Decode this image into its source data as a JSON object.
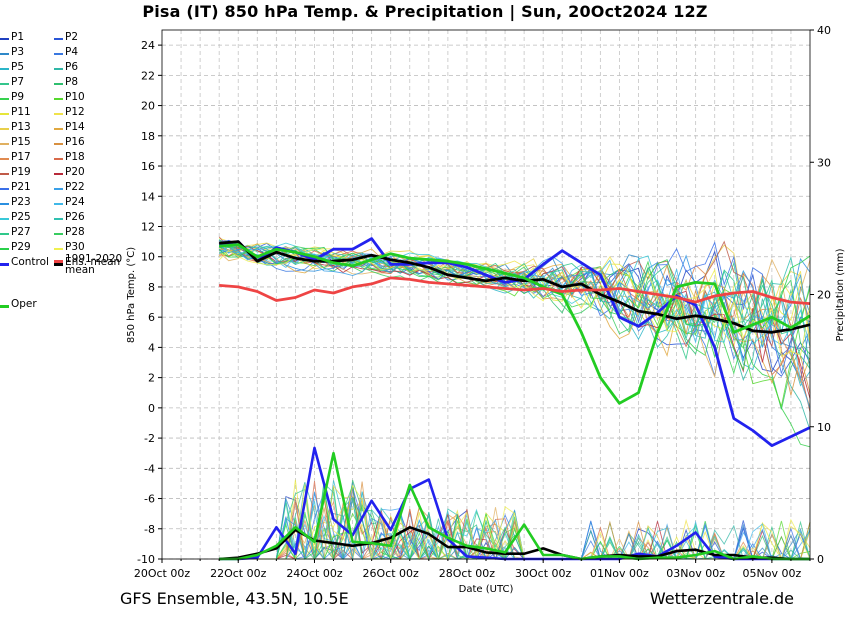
{
  "header": {
    "title": "Pisa  (IT)  850 hPa Temp. & Precipitation | Sun, 20Oct2024 12Z"
  },
  "footer": {
    "left": "GFS Ensemble, 43.5N, 10.5E",
    "right": "Wetterzentrale.de"
  },
  "legend": {
    "items": [
      {
        "label": "P1",
        "color": "#1f3fbf"
      },
      {
        "label": "P2",
        "color": "#2a56d6"
      },
      {
        "label": "P3",
        "color": "#2e88c8"
      },
      {
        "label": "P4",
        "color": "#3a78e0"
      },
      {
        "label": "P5",
        "color": "#2bb5c8"
      },
      {
        "label": "P6",
        "color": "#30b7a7"
      },
      {
        "label": "P7",
        "color": "#33c58c"
      },
      {
        "label": "P8",
        "color": "#2fbf6f"
      },
      {
        "label": "P9",
        "color": "#36d14e"
      },
      {
        "label": "P10",
        "color": "#56d82e"
      },
      {
        "label": "P11",
        "color": "#e6e63a"
      },
      {
        "label": "P12",
        "color": "#f0e24a"
      },
      {
        "label": "P13",
        "color": "#e8cf4a"
      },
      {
        "label": "P14",
        "color": "#e0a840"
      },
      {
        "label": "P15",
        "color": "#e0b060"
      },
      {
        "label": "P16",
        "color": "#d89040"
      },
      {
        "label": "P17",
        "color": "#e08a50"
      },
      {
        "label": "P18",
        "color": "#d86a4a"
      },
      {
        "label": "P19",
        "color": "#c05a48"
      },
      {
        "label": "P20",
        "color": "#b82a3a"
      },
      {
        "label": "P21",
        "color": "#3a6fe8"
      },
      {
        "label": "P22",
        "color": "#3aa0e8"
      },
      {
        "label": "P23",
        "color": "#2a8fe0"
      },
      {
        "label": "P24",
        "color": "#40b8e8"
      },
      {
        "label": "P25",
        "color": "#38c8d8"
      },
      {
        "label": "P26",
        "color": "#30c0b0"
      },
      {
        "label": "P27",
        "color": "#2fc88a"
      },
      {
        "label": "P28",
        "color": "#38cc60"
      },
      {
        "label": "P29",
        "color": "#2ad04a"
      },
      {
        "label": "P30",
        "color": "#f0f050"
      },
      {
        "label": "Control",
        "color": "#2222ee"
      },
      {
        "label": "Ens. mean",
        "color": "#000000"
      },
      {
        "label": "Oper",
        "color": "#22cc22"
      },
      {
        "label": "1991-2020\nmean",
        "color": "#ee4444"
      }
    ]
  },
  "chart_data": {
    "type": "line",
    "title": "Pisa  (IT)  850 hPa Temp. & Precipitation | Sun, 20Oct2024 12Z",
    "xlabel": "Date (UTC)",
    "ylabel": "850 hPa Temp. (°C)",
    "ylabel_right": "Precipitation (mm)",
    "x_ticks": [
      "20Oct 00z",
      "22Oct 00z",
      "24Oct 00z",
      "26Oct 00z",
      "28Oct 00z",
      "30Oct 00z",
      "01Nov 00z",
      "03Nov 00z",
      "05Nov 00z"
    ],
    "x_range_days": [
      0,
      17
    ],
    "step_hours": 6,
    "ylim": [
      -10,
      25
    ],
    "y_ticks": [
      -10,
      -8,
      -6,
      -4,
      -2,
      0,
      2,
      4,
      6,
      8,
      10,
      12,
      14,
      16,
      18,
      20,
      22,
      24
    ],
    "y2lim": [
      0,
      40
    ],
    "y2_ticks": [
      0,
      10,
      20,
      30,
      40
    ],
    "grid": true,
    "series": [
      {
        "name": "Control",
        "color": "#2222ee",
        "x_days": [
          1.5,
          2.0,
          2.5,
          3.0,
          3.5,
          4.0,
          4.5,
          5.0,
          5.5,
          6.0,
          6.5,
          7.0,
          7.5,
          8.0,
          8.5,
          9.0,
          9.5,
          10.0,
          10.5,
          11.0,
          11.5,
          12.0,
          12.5,
          13.0,
          13.5,
          14.0,
          14.5,
          15.0,
          15.5,
          16.0,
          16.5,
          17.0
        ],
        "temp": [
          10.8,
          11.0,
          9.7,
          10.6,
          10.3,
          9.8,
          10.5,
          10.5,
          11.2,
          9.5,
          9.5,
          9.6,
          9.6,
          9.3,
          8.8,
          8.3,
          8.5,
          9.5,
          10.4,
          9.6,
          8.8,
          6.0,
          5.4,
          6.3,
          7.4,
          6.8,
          4.0,
          -0.7,
          -1.5,
          -2.5,
          -1.9,
          -1.3
        ]
      },
      {
        "name": "Ens. mean",
        "color": "#000000",
        "x_days": [
          1.5,
          2.0,
          2.5,
          3.0,
          3.5,
          4.0,
          4.5,
          5.0,
          5.5,
          6.0,
          6.5,
          7.0,
          7.5,
          8.0,
          8.5,
          9.0,
          9.5,
          10.0,
          10.5,
          11.0,
          11.5,
          12.0,
          12.5,
          13.0,
          13.5,
          14.0,
          14.5,
          15.0,
          15.5,
          16.0,
          16.5,
          17.0
        ],
        "temp": [
          10.9,
          11.0,
          9.7,
          10.3,
          9.9,
          9.7,
          9.7,
          9.8,
          10.1,
          9.8,
          9.6,
          9.3,
          8.8,
          8.6,
          8.4,
          8.6,
          8.4,
          8.5,
          8.0,
          8.2,
          7.5,
          7.0,
          6.4,
          6.2,
          5.9,
          6.1,
          5.9,
          5.6,
          5.1,
          5.0,
          5.2,
          5.5
        ]
      },
      {
        "name": "Oper",
        "color": "#22cc22",
        "x_days": [
          1.5,
          2.0,
          2.5,
          3.0,
          3.5,
          4.0,
          4.5,
          5.0,
          5.5,
          6.0,
          6.5,
          7.0,
          7.5,
          8.0,
          8.5,
          9.0,
          9.5,
          10.0,
          10.5,
          11.0,
          11.5,
          12.0,
          12.5,
          13.0,
          13.5,
          14.0,
          14.5,
          15.0,
          15.5,
          16.0,
          16.5,
          17.0
        ],
        "temp": [
          10.7,
          10.8,
          10.0,
          10.5,
          10.3,
          10.0,
          9.6,
          9.4,
          9.8,
          10.2,
          9.9,
          9.8,
          9.7,
          9.5,
          9.2,
          8.9,
          8.6,
          8.0,
          7.5,
          5.0,
          2.0,
          0.3,
          1.0,
          5.0,
          8.0,
          8.3,
          8.2,
          5.0,
          5.5,
          6.0,
          5.3,
          6.1
        ]
      },
      {
        "name": "1991-2020 mean",
        "color": "#ee4444",
        "x_days": [
          1.5,
          2.0,
          2.5,
          3.0,
          3.5,
          4.0,
          4.5,
          5.0,
          5.5,
          6.0,
          6.5,
          7.0,
          7.5,
          8.0,
          8.5,
          9.0,
          9.5,
          10.0,
          10.5,
          11.0,
          11.5,
          12.0,
          12.5,
          13.0,
          13.5,
          14.0,
          14.5,
          15.0,
          15.5,
          16.0,
          16.5,
          17.0
        ],
        "temp": [
          8.1,
          8.0,
          7.7,
          7.1,
          7.3,
          7.8,
          7.6,
          8.0,
          8.2,
          8.6,
          8.5,
          8.3,
          8.2,
          8.1,
          8.0,
          7.9,
          7.8,
          7.9,
          7.7,
          7.8,
          7.8,
          7.9,
          7.7,
          7.5,
          7.3,
          7.0,
          7.4,
          7.6,
          7.7,
          7.3,
          7.0,
          6.9
        ]
      }
    ],
    "precipitation": [
      {
        "name": "Control",
        "color": "#2222ee",
        "x_days": [
          1.5,
          2.0,
          2.5,
          3.0,
          3.5,
          4.0,
          4.5,
          5.0,
          5.5,
          6.0,
          6.5,
          7.0,
          7.5,
          8.0,
          8.5,
          9.0,
          9.5,
          10.0,
          10.5,
          11.0,
          11.5,
          12.0,
          12.5,
          13.0,
          13.5,
          14.0,
          14.5,
          15.0,
          15.5,
          16.0,
          16.5,
          17.0
        ],
        "mm": [
          0,
          0,
          0.1,
          2.4,
          0.4,
          8.4,
          3.0,
          1.8,
          4.4,
          2.2,
          5.3,
          6.0,
          1.5,
          0.2,
          0.1,
          0,
          0,
          0,
          0,
          0,
          0,
          0,
          0.4,
          0.2,
          1.0,
          2.0,
          0.2,
          0,
          0,
          0,
          0,
          0
        ]
      },
      {
        "name": "Ens. mean",
        "color": "#000000",
        "x_days": [
          1.5,
          2.0,
          2.5,
          3.0,
          3.5,
          4.0,
          4.5,
          5.0,
          5.5,
          6.0,
          6.5,
          7.0,
          7.5,
          8.0,
          8.5,
          9.0,
          9.5,
          10.0,
          10.5,
          11.0,
          11.5,
          12.0,
          12.5,
          13.0,
          13.5,
          14.0,
          14.5,
          15.0,
          15.5,
          16.0,
          16.5,
          17.0
        ],
        "mm": [
          0,
          0.1,
          0.4,
          0.8,
          2.2,
          1.4,
          1.2,
          1.0,
          1.2,
          1.6,
          2.4,
          1.9,
          0.9,
          0.9,
          0.5,
          0.4,
          0.4,
          0.8,
          0.3,
          0,
          0.2,
          0.3,
          0.2,
          0.2,
          0.6,
          0.7,
          0.3,
          0.3,
          0.1,
          0.1,
          0,
          0
        ]
      },
      {
        "name": "Oper",
        "color": "#22cc22",
        "x_days": [
          1.5,
          2.0,
          2.5,
          3.0,
          3.5,
          4.0,
          4.5,
          5.0,
          5.5,
          6.0,
          6.5,
          7.0,
          7.5,
          8.0,
          8.5,
          9.0,
          9.5,
          10.0,
          10.5,
          11.0,
          11.5,
          12.0,
          12.5,
          13.0,
          13.5,
          14.0,
          14.5,
          15.0,
          15.5,
          16.0,
          16.5,
          17.0
        ],
        "mm": [
          0,
          0,
          0.3,
          1.0,
          2.4,
          1.3,
          8.0,
          1.3,
          1.2,
          1.0,
          5.6,
          2.4,
          1.6,
          1.0,
          0.8,
          0.5,
          2.6,
          0.3,
          0.3,
          0,
          0.2,
          0.2,
          0,
          0.1,
          0.1,
          0.3,
          0.6,
          0,
          0.2,
          0,
          0,
          0
        ]
      }
    ]
  }
}
